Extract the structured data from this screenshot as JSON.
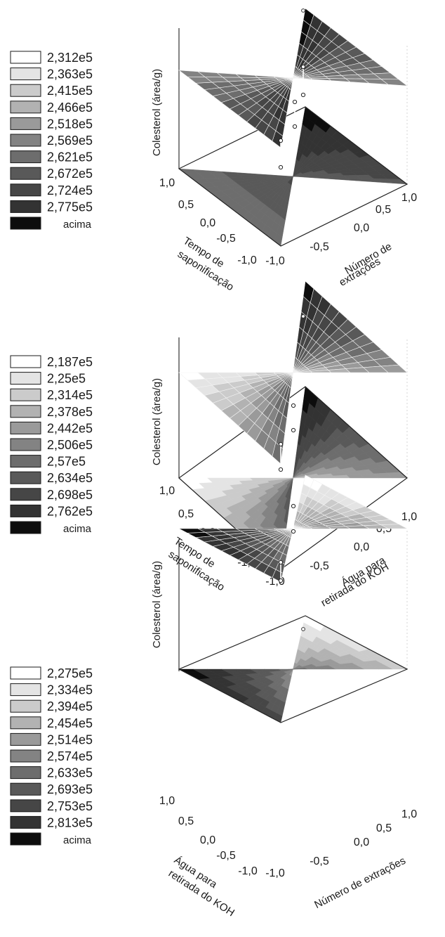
{
  "chart_data": [
    {
      "type": "surface",
      "zlabel": "Colesterol (área/g)",
      "xlabel_lines": [
        "Tempo de",
        "saponificação"
      ],
      "ylabel_lines": [
        "Número de",
        "extrações"
      ],
      "x_ticks": [
        "1,0",
        "0,5",
        "0,0",
        "-0,5",
        "-1,0"
      ],
      "y_ticks": [
        "-1,0",
        "-0,5",
        "0,0",
        "0,5",
        "1,0"
      ],
      "legend": [
        "2,312e5",
        "2,363e5",
        "2,415e5",
        "2,466e5",
        "2,518e5",
        "2,569e5",
        "2,621e5",
        "2,672e5",
        "2,724e5",
        "2,775e5",
        "acima"
      ],
      "legend_colors": [
        "#ffffff",
        "#e4e4e4",
        "#cbcbcb",
        "#b2b2b2",
        "#9a9a9a",
        "#838383",
        "#6d6d6d",
        "#595959",
        "#464646",
        "#333333",
        "#0d0d0d"
      ],
      "surface_corners": {
        "x_min_y_min": 0.85,
        "x_max_y_min": 0.5,
        "x_min_y_max": 0.95,
        "x_max_y_max": 0.45
      },
      "floor_corners": {
        "x_min_y_min": 0.55,
        "x_max_y_min": 0.62,
        "x_min_y_max": 0.98,
        "x_max_y_max": 0.72
      }
    },
    {
      "type": "surface",
      "zlabel": "Colesterol (área/g)",
      "xlabel_lines": [
        "Tempo de",
        "saponificação"
      ],
      "ylabel_lines": [
        "Água para",
        "retirada do KOH"
      ],
      "x_ticks": [
        "1,0",
        "0,5",
        "0,0",
        "-0,5",
        "-1,0"
      ],
      "y_ticks": [
        "-1,0",
        "-0,5",
        "0,0",
        "0,5",
        "1,0"
      ],
      "legend": [
        "2,187e5",
        "2,25e5",
        "2,314e5",
        "2,378e5",
        "2,442e5",
        "2,506e5",
        "2,57e5",
        "2,634e5",
        "2,698e5",
        "2,762e5",
        "acima"
      ],
      "legend_colors": [
        "#ffffff",
        "#e4e4e4",
        "#cbcbcb",
        "#b2b2b2",
        "#9a9a9a",
        "#838383",
        "#6d6d6d",
        "#595959",
        "#464646",
        "#333333",
        "#0d0d0d"
      ],
      "surface_corners": {
        "x_min_y_min": 0.55,
        "x_max_y_min": 0.02,
        "x_min_y_max": 0.98,
        "x_max_y_max": 0.45
      },
      "floor_corners": {
        "x_min_y_min": 0.55,
        "x_max_y_min": 0.02,
        "x_min_y_max": 0.98,
        "x_max_y_max": 0.45
      }
    },
    {
      "type": "surface",
      "zlabel": "Colesterol (área/g)",
      "xlabel_lines": [
        "Água para",
        "retirada do KOH"
      ],
      "ylabel_lines": [
        "Número de extrações"
      ],
      "x_ticks": [
        "1,0",
        "0,5",
        "0,0",
        "-0,5",
        "-1,0"
      ],
      "y_ticks": [
        "-1,0",
        "-0,5",
        "0,0",
        "0,5",
        "1,0"
      ],
      "legend": [
        "2,275e5",
        "2,334e5",
        "2,394e5",
        "2,454e5",
        "2,514e5",
        "2,574e5",
        "2,633e5",
        "2,693e5",
        "2,753e5",
        "2,813e5",
        "acima"
      ],
      "legend_colors": [
        "#ffffff",
        "#e4e4e4",
        "#cbcbcb",
        "#b2b2b2",
        "#9a9a9a",
        "#838383",
        "#6d6d6d",
        "#595959",
        "#464646",
        "#333333",
        "#0d0d0d"
      ],
      "surface_corners": {
        "x_min_y_min": 0.75,
        "x_max_y_min": 0.98,
        "x_min_y_max": 0.02,
        "x_max_y_max": 0.25
      },
      "floor_corners": {
        "x_min_y_min": 0.75,
        "x_max_y_min": 0.98,
        "x_min_y_max": 0.02,
        "x_max_y_max": 0.25
      }
    }
  ]
}
